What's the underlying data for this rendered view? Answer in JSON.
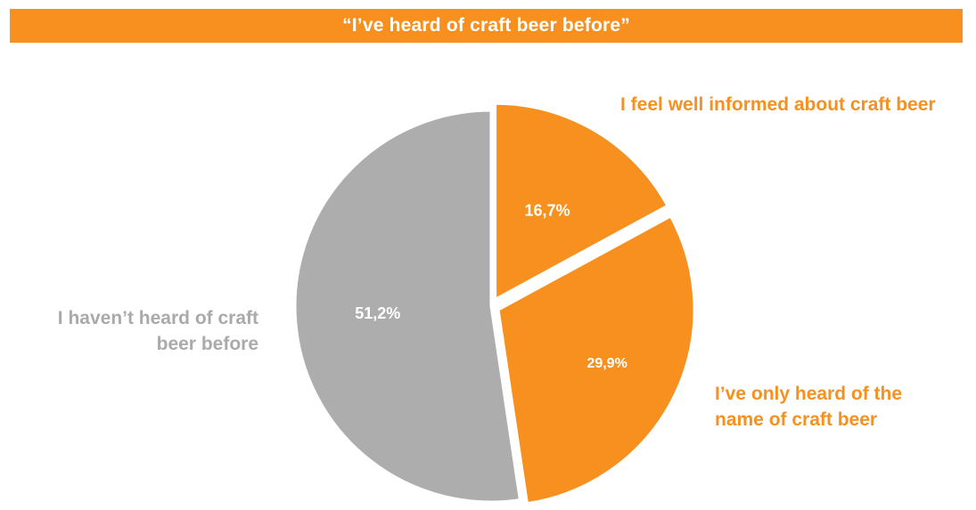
{
  "chart_data": {
    "type": "pie",
    "title": "“I’ve heard of craft beer before”",
    "slices": [
      {
        "label": "I feel well informed about craft beer",
        "value": 16.7,
        "value_label": "16,7%",
        "color": "#f7901e"
      },
      {
        "label": "I’ve only heard of the name of craft beer",
        "value": 29.9,
        "value_label": "29,9%",
        "color": "#f7901e"
      },
      {
        "label": "I haven’t heard of craft beer before",
        "value": 51.2,
        "value_label": "51,2%",
        "color": "#adadad"
      }
    ],
    "legend": "none",
    "label_lines": {
      "informed": [
        "I feel well informed about craft beer"
      ],
      "name": [
        "I’ve only heard of the",
        "name of craft beer"
      ],
      "not_heard": [
        "I haven’t heard of craft",
        "beer before"
      ]
    }
  },
  "colors": {
    "accent": "#f7901e",
    "grey": "#adadad",
    "grey_text": "#aaaaaa"
  }
}
